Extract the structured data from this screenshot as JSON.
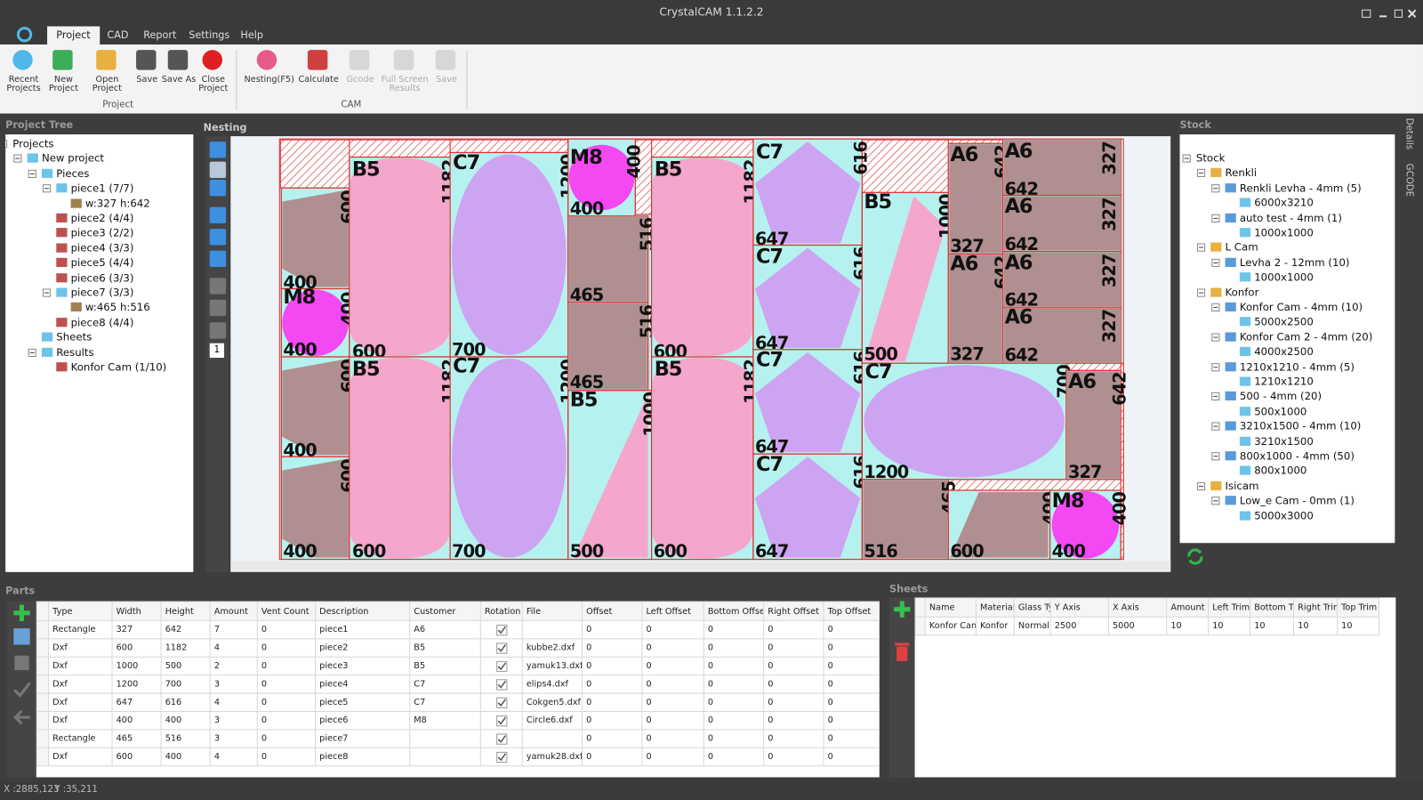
{
  "window": {
    "title": "CrystalCAM 1.1.2.2"
  },
  "menu": [
    "Project",
    "CAD",
    "Report",
    "Settings",
    "Help"
  ],
  "ribbon": {
    "groups": [
      {
        "label": "Project",
        "buttons": [
          "Recent Projects",
          "New Project",
          "Open Project",
          "Save",
          "Save As",
          "Close Project"
        ]
      },
      {
        "label": "CAM",
        "buttons": [
          "Nesting(F5)",
          "Calculate",
          "Gcode",
          "Full Screen Results",
          "Save"
        ]
      }
    ]
  },
  "project_tree": {
    "title": "Project Tree",
    "root": {
      "label": "Projects",
      "children": [
        {
          "label": "New project",
          "children": [
            {
              "label": "Pieces",
              "children": [
                {
                  "label": "piece1 (7/7)",
                  "children": [
                    {
                      "label": "w:327 h:642"
                    }
                  ]
                },
                {
                  "label": "piece2 (4/4)"
                },
                {
                  "label": "piece3 (2/2)"
                },
                {
                  "label": "piece4 (3/3)"
                },
                {
                  "label": "piece5 (4/4)"
                },
                {
                  "label": "piece6 (3/3)"
                },
                {
                  "label": "piece7 (3/3)",
                  "children": [
                    {
                      "label": "w:465 h:516"
                    }
                  ]
                },
                {
                  "label": "piece8 (4/4)"
                }
              ]
            },
            {
              "label": "Sheets"
            },
            {
              "label": "Results",
              "children": [
                {
                  "label": "Konfor Cam (1/10)"
                }
              ]
            }
          ]
        }
      ]
    }
  },
  "nesting": {
    "title": "Nesting",
    "page": 1,
    "pieces": [
      {
        "dims": [
          600,
          400
        ]
      },
      {
        "label": "M8",
        "dims": [
          400,
          400
        ]
      },
      {
        "dims": [
          600,
          400
        ]
      },
      {
        "dims": [
          600,
          400
        ]
      },
      {
        "label": "B5",
        "dims": [
          1182,
          600
        ]
      },
      {
        "label": "B5",
        "dims": [
          1182,
          600
        ]
      },
      {
        "label": "C7",
        "dims": [
          1200,
          700
        ]
      },
      {
        "label": "C7",
        "dims": [
          1200,
          700
        ]
      },
      {
        "label": "M8",
        "dims": [
          400,
          400
        ]
      },
      {
        "dims": [
          516,
          465
        ]
      },
      {
        "dims": [
          516,
          465
        ]
      },
      {
        "label": "B5",
        "dims": [
          1000,
          500
        ]
      },
      {
        "label": "B5",
        "dims": [
          1182,
          600
        ]
      },
      {
        "label": "B5",
        "dims": [
          1182,
          600
        ]
      },
      {
        "label": "C7",
        "dims": [
          616,
          647
        ]
      },
      {
        "label": "C7",
        "dims": [
          616,
          647
        ]
      },
      {
        "label": "C7",
        "dims": [
          616,
          647
        ]
      },
      {
        "label": "C7",
        "dims": [
          616,
          647
        ]
      },
      {
        "label": "B5",
        "dims": [
          1000,
          500
        ]
      },
      {
        "label": "A6",
        "dims": [
          642,
          327
        ]
      },
      {
        "label": "A6",
        "dims": [
          642,
          327
        ]
      },
      {
        "label": "A6",
        "dims": [
          327,
          642
        ]
      },
      {
        "label": "A6",
        "dims": [
          327,
          642
        ]
      },
      {
        "label": "A6",
        "dims": [
          327,
          642
        ]
      },
      {
        "label": "A6",
        "dims": [
          327,
          642
        ]
      },
      {
        "label": "C7",
        "dims": [
          700,
          1200
        ]
      },
      {
        "label": "A6",
        "dims": [
          642,
          327
        ]
      },
      {
        "dims": [
          465,
          516
        ]
      },
      {
        "dims": [
          400,
          600
        ]
      },
      {
        "label": "M8",
        "dims": [
          400,
          400
        ]
      }
    ]
  },
  "stock": {
    "title": "Stock",
    "root": {
      "label": "Stock",
      "children": [
        {
          "label": "Renkli",
          "children": [
            {
              "label": "Renkli Levha - 4mm (5)",
              "children": [
                {
                  "label": "6000x3210"
                }
              ]
            },
            {
              "label": "auto test - 4mm (1)",
              "children": [
                {
                  "label": "1000x1000"
                }
              ]
            }
          ]
        },
        {
          "label": "L Cam",
          "children": [
            {
              "label": "Levha 2 - 12mm (10)",
              "children": [
                {
                  "label": "1000x1000"
                }
              ]
            }
          ]
        },
        {
          "label": "Konfor",
          "children": [
            {
              "label": "Konfor Cam - 4mm (10)",
              "children": [
                {
                  "label": "5000x2500"
                }
              ]
            },
            {
              "label": "Konfor Cam 2 - 4mm (20)",
              "children": [
                {
                  "label": "4000x2500"
                }
              ]
            },
            {
              "label": "1210x1210 - 4mm (5)",
              "children": [
                {
                  "label": "1210x1210"
                }
              ]
            },
            {
              "label": "500 - 4mm (20)",
              "children": [
                {
                  "label": "500x1000"
                }
              ]
            },
            {
              "label": "3210x1500 - 4mm (10)",
              "children": [
                {
                  "label": "3210x1500"
                }
              ]
            },
            {
              "label": "800x1000 - 4mm (50)",
              "children": [
                {
                  "label": "800x1000"
                }
              ]
            }
          ]
        },
        {
          "label": "Isicam",
          "children": [
            {
              "label": "Low_e Cam - 0mm (1)",
              "children": [
                {
                  "label": "5000x3000"
                }
              ]
            }
          ]
        }
      ]
    }
  },
  "side_tabs": [
    "Details",
    "GCODE"
  ],
  "parts": {
    "title": "Parts",
    "columns": [
      "Type",
      "Width",
      "Height",
      "Amount",
      "Vent Count",
      "Description",
      "Customer",
      "Rotation",
      "File",
      "Offset",
      "Left Offset",
      "Bottom Offse",
      "Right Offset",
      "Top Offset"
    ],
    "rows": [
      [
        "Rectangle",
        327,
        642,
        7,
        0,
        "piece1",
        "A6",
        true,
        null,
        0,
        0,
        0,
        0,
        0
      ],
      [
        "Dxf",
        600,
        1182,
        4,
        0,
        "piece2",
        "B5",
        true,
        "kubbe2.dxf",
        0,
        0,
        0,
        0,
        0
      ],
      [
        "Dxf",
        1000,
        500,
        2,
        0,
        "piece3",
        "B5",
        true,
        "yamuk13.dxf",
        0,
        0,
        0,
        0,
        0
      ],
      [
        "Dxf",
        1200,
        700,
        3,
        0,
        "piece4",
        "C7",
        true,
        "elips4.dxf",
        0,
        0,
        0,
        0,
        0
      ],
      [
        "Dxf",
        647,
        616,
        4,
        0,
        "piece5",
        "C7",
        true,
        "Cokgen5.dxf",
        0,
        0,
        0,
        0,
        0
      ],
      [
        "Dxf",
        400,
        400,
        3,
        0,
        "piece6",
        "M8",
        true,
        "Circle6.dxf",
        0,
        0,
        0,
        0,
        0
      ],
      [
        "Rectangle",
        465,
        516,
        3,
        0,
        "piece7",
        null,
        true,
        null,
        0,
        0,
        0,
        0,
        0
      ],
      [
        "Dxf",
        600,
        400,
        4,
        0,
        "piece8",
        null,
        true,
        "yamuk28.dxf",
        0,
        0,
        0,
        0,
        0
      ]
    ]
  },
  "sheets": {
    "title": "Sheets",
    "columns": [
      "Name",
      "Material",
      "Glass Ty",
      "Y Axis",
      "X Axis",
      "Amount",
      "Left Trim",
      "Bottom T",
      "Right Trir",
      "Top Trim"
    ],
    "rows": [
      [
        "Konfor Cam",
        "Konfor",
        "Normal",
        2500,
        5000,
        10,
        10,
        10,
        10,
        10
      ]
    ]
  },
  "status": {
    "x": "X :2885,123",
    "y": "Y :35,211"
  }
}
